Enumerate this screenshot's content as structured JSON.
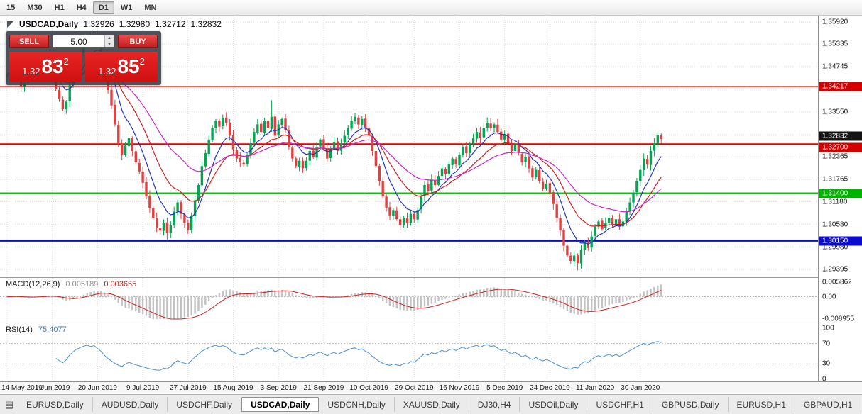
{
  "toolbar": {
    "timeframes": [
      "15",
      "M30",
      "H1",
      "H4",
      "D1",
      "W1",
      "MN"
    ],
    "active_timeframe": "D1"
  },
  "chart_header": {
    "symbol": "USDCAD,Daily",
    "open": "1.32926",
    "high": "1.32980",
    "low": "1.32712",
    "close": "1.32832"
  },
  "trade_panel": {
    "sell_label": "SELL",
    "buy_label": "BUY",
    "volume": "5.00",
    "bid": {
      "prefix": "1.32",
      "big": "83",
      "sup": "2"
    },
    "ask": {
      "prefix": "1.32",
      "big": "85",
      "sup": "2"
    }
  },
  "price_axis": {
    "labels": [
      {
        "text": "1.35920",
        "value": 1.3592
      },
      {
        "text": "1.35335",
        "value": 1.35335
      },
      {
        "text": "1.34745",
        "value": 1.34745
      },
      {
        "text": "1.33550",
        "value": 1.3355
      },
      {
        "text": "1.32950",
        "value": 1.3295
      },
      {
        "text": "1.32365",
        "value": 1.32365
      },
      {
        "text": "1.31765",
        "value": 1.31765
      },
      {
        "text": "1.31180",
        "value": 1.3118
      },
      {
        "text": "1.30580",
        "value": 1.3058
      },
      {
        "text": "1.29980",
        "value": 1.2998
      },
      {
        "text": "1.29395",
        "value": 1.29395
      }
    ],
    "tags": [
      {
        "text": "1.34217",
        "value": 1.34217,
        "color": "#d40000",
        "dy": 0,
        "name": "resistance-line-tag"
      },
      {
        "text": "1.32832",
        "value": 1.32832,
        "color": "#141414",
        "dy": -4,
        "name": "bid-price-tag"
      },
      {
        "text": "1.32700",
        "value": 1.327,
        "color": "#d40000",
        "dy": 5,
        "name": "resistance-line-tag-2"
      },
      {
        "text": "1.31400",
        "value": 1.314,
        "color": "#00b300",
        "dy": 0,
        "name": "support-line-tag"
      },
      {
        "text": "1.30150",
        "value": 1.3015,
        "color": "#0b0bcf",
        "dy": 0,
        "name": "support-line-tag-2"
      }
    ]
  },
  "macd_panel": {
    "title": "MACD(12,26,9)",
    "value_main": "0.005189",
    "value_signal": "0.003655",
    "axis_labels": [
      {
        "text": "0.005862",
        "value": 0.005862
      },
      {
        "text": "0.00",
        "value": 0
      },
      {
        "text": "-0.008955",
        "value": -0.008955
      }
    ]
  },
  "rsi_panel": {
    "title": "RSI(14)",
    "value": "75.4077",
    "axis_labels": [
      {
        "text": "100",
        "value": 100
      },
      {
        "text": "70",
        "value": 70
      },
      {
        "text": "30",
        "value": 30
      },
      {
        "text": "0",
        "value": 0
      }
    ],
    "levels": [
      70,
      30
    ]
  },
  "date_axis": [
    "14 May 2019",
    "1 Jun 2019",
    "20 Jun 2019",
    "9 Jul 2019",
    "27 Jul 2019",
    "15 Aug 2019",
    "3 Sep 2019",
    "21 Sep 2019",
    "10 Oct 2019",
    "29 Oct 2019",
    "16 Nov 2019",
    "5 Dec 2019",
    "24 Dec 2019",
    "11 Jan 2020",
    "30 Jan 2020"
  ],
  "tabbar": {
    "tabs": [
      "EURUSD,Daily",
      "AUDUSD,Daily",
      "USDCHF,Daily",
      "USDCAD,Daily",
      "USDCNH,Daily",
      "XAUUSD,Daily",
      "DJ30,H4",
      "USDOil,Daily",
      "USDCHF,H1",
      "GBPUSD,Daily",
      "EURUSD,H1",
      "GBPAUD,H1"
    ],
    "active": "USDCAD,Daily"
  },
  "colors": {
    "up": "#00a651",
    "down": "#e04040",
    "ma_fast": "#2635bd",
    "ma_mid": "#cc2222",
    "ma_slow": "#c828c8",
    "macd_hist": "#c2c2c2",
    "macd_signal": "#cc2222",
    "rsi_line": "#4a90d2",
    "grid": "#d9d9d9",
    "level_red": "#e00000",
    "level_green": "#00cc00",
    "level_blue": "#0b0bcf"
  },
  "chart_data": {
    "type": "candlestick",
    "symbol": "USDCAD",
    "timeframe": "Daily",
    "title": "USDCAD,Daily",
    "ohlc_current": {
      "open": 1.32926,
      "high": 1.3298,
      "low": 1.32712,
      "close": 1.32832
    },
    "bid": 1.32832,
    "ask": 1.32852,
    "x_labels": [
      "14 May 2019",
      "1 Jun 2019",
      "20 Jun 2019",
      "9 Jul 2019",
      "27 Jul 2019",
      "15 Aug 2019",
      "3 Sep 2019",
      "21 Sep 2019",
      "10 Oct 2019",
      "29 Oct 2019",
      "16 Nov 2019",
      "5 Dec 2019",
      "24 Dec 2019",
      "11 Jan 2020",
      "30 Jan 2020"
    ],
    "label_indices": [
      0,
      13,
      26,
      39,
      52,
      65,
      78,
      91,
      104,
      117,
      130,
      143,
      156,
      169,
      182
    ],
    "ylim": [
      1.2919,
      1.36088
    ],
    "extra_grid": [
      1.3415
    ],
    "hlines": [
      {
        "price": 1.34217,
        "color": "#e00000",
        "width": 1
      },
      {
        "price": 1.327,
        "color": "#e00000",
        "width": 2
      },
      {
        "price": 1.314,
        "color": "#00cc00",
        "width": 2.5
      },
      {
        "price": 1.3015,
        "color": "#0b0bcf",
        "width": 2.5
      }
    ],
    "candles": 189,
    "close_anchors": [
      [
        0,
        1.3455
      ],
      [
        2,
        1.3478
      ],
      [
        4,
        1.342
      ],
      [
        6,
        1.3442
      ],
      [
        8,
        1.3468
      ],
      [
        10,
        1.3488
      ],
      [
        12,
        1.347
      ],
      [
        13,
        1.3452
      ],
      [
        14,
        1.3415
      ],
      [
        16,
        1.3362
      ],
      [
        17,
        1.3382
      ],
      [
        18,
        1.3425
      ],
      [
        20,
        1.3492
      ],
      [
        22,
        1.3535
      ],
      [
        23,
        1.3552
      ],
      [
        24,
        1.354
      ],
      [
        25,
        1.3556
      ],
      [
        26,
        1.3532
      ],
      [
        27,
        1.3505
      ],
      [
        28,
        1.3458
      ],
      [
        29,
        1.3412
      ],
      [
        30,
        1.3372
      ],
      [
        31,
        1.3322
      ],
      [
        32,
        1.3272
      ],
      [
        33,
        1.3242
      ],
      [
        34,
        1.3266
      ],
      [
        35,
        1.3286
      ],
      [
        36,
        1.3252
      ],
      [
        37,
        1.3222
      ],
      [
        38,
        1.3198
      ],
      [
        39,
        1.3168
      ],
      [
        40,
        1.3132
      ],
      [
        41,
        1.3102
      ],
      [
        42,
        1.3076
      ],
      [
        43,
        1.305
      ],
      [
        44,
        1.3042
      ],
      [
        45,
        1.3062
      ],
      [
        46,
        1.3036
      ],
      [
        47,
        1.3056
      ],
      [
        48,
        1.3092
      ],
      [
        49,
        1.3116
      ],
      [
        50,
        1.3086
      ],
      [
        51,
        1.3062
      ],
      [
        52,
        1.3044
      ],
      [
        53,
        1.3082
      ],
      [
        54,
        1.3122
      ],
      [
        55,
        1.3162
      ],
      [
        56,
        1.3212
      ],
      [
        57,
        1.3246
      ],
      [
        58,
        1.3282
      ],
      [
        59,
        1.3312
      ],
      [
        60,
        1.3332
      ],
      [
        61,
        1.3316
      ],
      [
        62,
        1.334
      ],
      [
        63,
        1.3326
      ],
      [
        64,
        1.3292
      ],
      [
        65,
        1.3256
      ],
      [
        66,
        1.3232
      ],
      [
        67,
        1.3222
      ],
      [
        68,
        1.3216
      ],
      [
        69,
        1.3242
      ],
      [
        70,
        1.3272
      ],
      [
        71,
        1.3302
      ],
      [
        72,
        1.3322
      ],
      [
        73,
        1.3302
      ],
      [
        74,
        1.3332
      ],
      [
        75,
        1.3312
      ],
      [
        76,
        1.3342
      ],
      [
        77,
        1.3292
      ],
      [
        78,
        1.3322
      ],
      [
        79,
        1.3336
      ],
      [
        80,
        1.3306
      ],
      [
        81,
        1.3262
      ],
      [
        82,
        1.3232
      ],
      [
        83,
        1.3212
      ],
      [
        84,
        1.3226
      ],
      [
        85,
        1.3206
      ],
      [
        86,
        1.3226
      ],
      [
        87,
        1.3252
      ],
      [
        88,
        1.3236
      ],
      [
        89,
        1.3262
      ],
      [
        90,
        1.3282
      ],
      [
        91,
        1.3256
      ],
      [
        92,
        1.3232
      ],
      [
        93,
        1.3256
      ],
      [
        94,
        1.3276
      ],
      [
        95,
        1.3252
      ],
      [
        96,
        1.3272
      ],
      [
        97,
        1.3292
      ],
      [
        98,
        1.3312
      ],
      [
        99,
        1.3332
      ],
      [
        100,
        1.3342
      ],
      [
        101,
        1.3322
      ],
      [
        102,
        1.3336
      ],
      [
        103,
        1.3312
      ],
      [
        104,
        1.3292
      ],
      [
        105,
        1.3252
      ],
      [
        106,
        1.3212
      ],
      [
        107,
        1.3172
      ],
      [
        108,
        1.3132
      ],
      [
        109,
        1.3102
      ],
      [
        110,
        1.3082
      ],
      [
        111,
        1.3096
      ],
      [
        112,
        1.3072
      ],
      [
        113,
        1.3056
      ],
      [
        114,
        1.3076
      ],
      [
        115,
        1.3062
      ],
      [
        116,
        1.3086
      ],
      [
        117,
        1.3072
      ],
      [
        118,
        1.3096
      ],
      [
        119,
        1.3132
      ],
      [
        120,
        1.3162
      ],
      [
        121,
        1.3146
      ],
      [
        122,
        1.3176
      ],
      [
        123,
        1.3162
      ],
      [
        124,
        1.3186
      ],
      [
        125,
        1.3206
      ],
      [
        126,
        1.3192
      ],
      [
        127,
        1.3216
      ],
      [
        128,
        1.3232
      ],
      [
        129,
        1.3216
      ],
      [
        130,
        1.3242
      ],
      [
        131,
        1.3262
      ],
      [
        132,
        1.3246
      ],
      [
        133,
        1.3272
      ],
      [
        134,
        1.3286
      ],
      [
        135,
        1.3302
      ],
      [
        136,
        1.3286
      ],
      [
        137,
        1.3312
      ],
      [
        138,
        1.3326
      ],
      [
        139,
        1.3312
      ],
      [
        140,
        1.3322
      ],
      [
        141,
        1.3302
      ],
      [
        142,
        1.3282
      ],
      [
        143,
        1.3296
      ],
      [
        144,
        1.3272
      ],
      [
        145,
        1.3252
      ],
      [
        146,
        1.3272
      ],
      [
        147,
        1.3246
      ],
      [
        148,
        1.3222
      ],
      [
        149,
        1.3236
      ],
      [
        150,
        1.3206
      ],
      [
        151,
        1.3182
      ],
      [
        152,
        1.3202
      ],
      [
        153,
        1.3172
      ],
      [
        154,
        1.3152
      ],
      [
        155,
        1.3166
      ],
      [
        156,
        1.3142
      ],
      [
        157,
        1.3112
      ],
      [
        158,
        1.3076
      ],
      [
        159,
        1.3042
      ],
      [
        160,
        1.3002
      ],
      [
        161,
        1.2976
      ],
      [
        162,
        1.2962
      ],
      [
        163,
        1.2976
      ],
      [
        164,
        1.2956
      ],
      [
        165,
        1.2992
      ],
      [
        166,
        1.3012
      ],
      [
        167,
        1.2996
      ],
      [
        168,
        1.3026
      ],
      [
        169,
        1.3052
      ],
      [
        170,
        1.3066
      ],
      [
        171,
        1.3046
      ],
      [
        172,
        1.3062
      ],
      [
        173,
        1.3076
      ],
      [
        174,
        1.3056
      ],
      [
        175,
        1.3072
      ],
      [
        176,
        1.3052
      ],
      [
        177,
        1.3066
      ],
      [
        178,
        1.3092
      ],
      [
        179,
        1.3116
      ],
      [
        180,
        1.3142
      ],
      [
        181,
        1.3172
      ],
      [
        182,
        1.3202
      ],
      [
        183,
        1.3232
      ],
      [
        184,
        1.3216
      ],
      [
        185,
        1.3252
      ],
      [
        186,
        1.3272
      ],
      [
        187,
        1.3293
      ],
      [
        188,
        1.32832
      ]
    ],
    "wick_overrides": {
      "25": {
        "high": 1.357
      },
      "46": {
        "low": 1.3016
      },
      "76": {
        "high": 1.3386
      },
      "100": {
        "high": 1.3352
      },
      "164": {
        "low": 1.2937
      },
      "188": {
        "high": 1.3298,
        "low": 1.32712,
        "open": 1.32926
      }
    },
    "indicators": {
      "macd": {
        "params": [
          12,
          26,
          9
        ],
        "current": [
          0.005189,
          0.003655
        ],
        "range": [
          -0.008955,
          0.005862
        ]
      },
      "rsi": {
        "params": [
          14
        ],
        "current": 75.4077,
        "levels": [
          70,
          30
        ],
        "range": [
          0,
          100
        ]
      }
    }
  }
}
